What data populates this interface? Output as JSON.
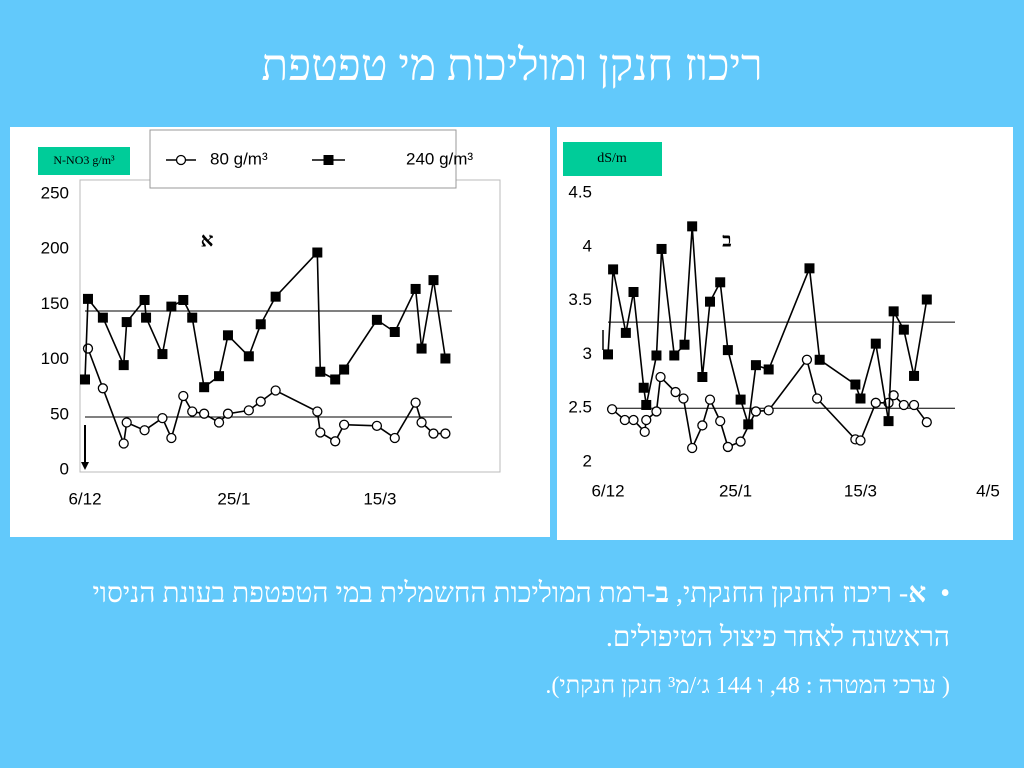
{
  "title": "ריכוז חנקן ומוליכות מי טפטפת",
  "chart_data": [
    {
      "type": "line",
      "ylabel": "N-NO3 g/m³",
      "annotation": "א",
      "xlim": [
        0,
        140
      ],
      "ylim": [
        0,
        250
      ],
      "xticks": [
        {
          "value": 0,
          "label": "6/12"
        },
        {
          "value": 50,
          "label": "25/1"
        },
        {
          "value": 99,
          "label": "15/3"
        }
      ],
      "yticks": [
        0,
        50,
        100,
        150,
        200,
        250
      ],
      "reference_lines": [
        48,
        144
      ],
      "series": [
        {
          "name": "80 g/m³",
          "marker": "circle",
          "color": "#000000",
          "x": [
            1,
            6,
            13,
            14,
            20,
            26,
            29,
            33,
            36,
            40,
            45,
            48,
            55,
            59,
            64,
            78,
            79,
            84,
            87,
            98,
            104,
            111,
            113,
            117,
            121
          ],
          "values": [
            110,
            74,
            24,
            43,
            36,
            47,
            29,
            67,
            53,
            51,
            43,
            51,
            54,
            62,
            72,
            53,
            34,
            26,
            41,
            40,
            29,
            61,
            43,
            33,
            33
          ]
        },
        {
          "name": "240 g/m³",
          "marker": "square",
          "color": "#000000",
          "x": [
            0,
            1,
            6,
            13,
            14,
            20,
            20.5,
            26,
            29,
            33,
            36,
            40,
            45,
            48,
            55,
            59,
            64,
            78,
            79,
            84,
            87,
            98,
            104,
            111,
            113,
            117,
            121
          ],
          "values": [
            82,
            155,
            138,
            95,
            134,
            154,
            138,
            105,
            148,
            154,
            138,
            75,
            85,
            122,
            103,
            132,
            157,
            197,
            89,
            82,
            91,
            136,
            125,
            164,
            110,
            172,
            101
          ]
        }
      ]
    },
    {
      "type": "line",
      "ylabel": "dS/m",
      "annotation": "ב",
      "xlim": [
        0,
        149
      ],
      "ylim": [
        2,
        4.5
      ],
      "xticks": [
        {
          "value": 0,
          "label": "6/12"
        },
        {
          "value": 50,
          "label": "25/1"
        },
        {
          "value": 99,
          "label": "15/3"
        },
        {
          "value": 149,
          "label": "4/5"
        }
      ],
      "yticks": [
        2,
        2.5,
        3,
        3.5,
        4,
        4.5
      ],
      "reference_lines": [
        3.3,
        2.5
      ],
      "series": [
        {
          "marker": "circle",
          "color": "#000000",
          "x": [
            1.6,
            6.6,
            10,
            14.4,
            15,
            19,
            20.6,
            26.5,
            29.6,
            33,
            37,
            40,
            44,
            47,
            52,
            58,
            63,
            78,
            82,
            97,
            99,
            105,
            110,
            112,
            116,
            120,
            125
          ],
          "values": [
            2.49,
            2.39,
            2.39,
            2.28,
            2.39,
            2.47,
            2.79,
            2.65,
            2.59,
            2.13,
            2.34,
            2.58,
            2.38,
            2.14,
            2.19,
            2.47,
            2.48,
            2.95,
            2.59,
            2.21,
            2.2,
            2.55,
            2.55,
            2.62,
            2.53,
            2.53,
            2.37
          ]
        },
        {
          "marker": "square",
          "color": "#000000",
          "x": [
            0,
            2,
            7,
            10,
            14,
            15,
            19,
            21,
            26,
            30,
            33,
            37,
            40,
            44,
            47,
            52,
            55,
            58,
            63,
            79,
            83,
            97,
            99,
            105,
            110,
            112,
            116,
            120,
            125
          ],
          "values": [
            3.0,
            3.79,
            3.2,
            3.58,
            2.69,
            2.53,
            2.99,
            3.98,
            2.99,
            3.09,
            4.19,
            2.79,
            3.49,
            3.67,
            3.04,
            2.58,
            2.35,
            2.9,
            2.86,
            3.8,
            2.95,
            2.72,
            2.59,
            3.1,
            2.38,
            3.4,
            3.23,
            2.8,
            3.51
          ]
        }
      ]
    }
  ],
  "bullet": {
    "letter_a": "א",
    "text_a": "- ריכוז החנקן החנקתי, ",
    "letter_b": "ב",
    "text_b": "-רמת המוליכות החשמלית במי הטפטפת בעונת הניסוי הראשונה לאחר פיצול הטיפולים.",
    "note": "( ערכי המטרה : 48, ו 144 ג׳/מ³ חנקן חנקתי)."
  }
}
